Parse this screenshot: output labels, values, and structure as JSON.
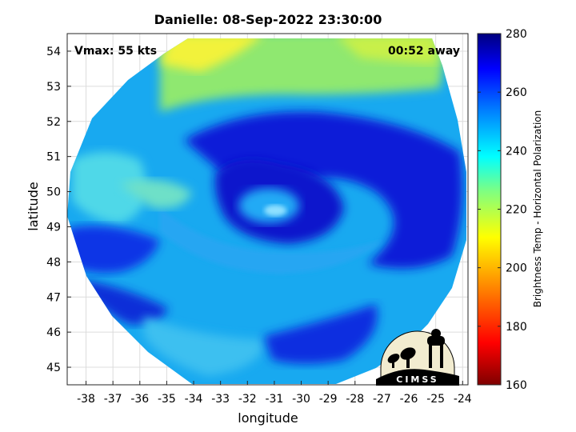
{
  "chart_data": {
    "type": "heatmap",
    "title": "Danielle: 08-Sep-2022 23:30:00",
    "xlabel": "longitude",
    "ylabel": "latitude",
    "xlim": [
      -38.7,
      -23.8
    ],
    "ylim": [
      44.5,
      54.5
    ],
    "x_ticks": [
      -38,
      -37,
      -36,
      -35,
      -34,
      -33,
      -32,
      -31,
      -30,
      -29,
      -28,
      -27,
      -26,
      -25,
      -24
    ],
    "y_ticks": [
      45,
      46,
      47,
      48,
      49,
      50,
      51,
      52,
      53,
      54
    ],
    "grid": true,
    "annotations": {
      "vmax": "Vmax: 55 kts",
      "time_offset": "00:52 away"
    },
    "storm_center": {
      "lon": -31.2,
      "lat": 49.6
    },
    "colorbar": {
      "label": "Brightness Temp - Horizontal Polarization",
      "min": 160,
      "max": 280,
      "ticks": [
        160,
        180,
        200,
        220,
        240,
        260,
        280
      ],
      "colormap": "jet"
    }
  },
  "logo": {
    "text": "CIMSS"
  }
}
